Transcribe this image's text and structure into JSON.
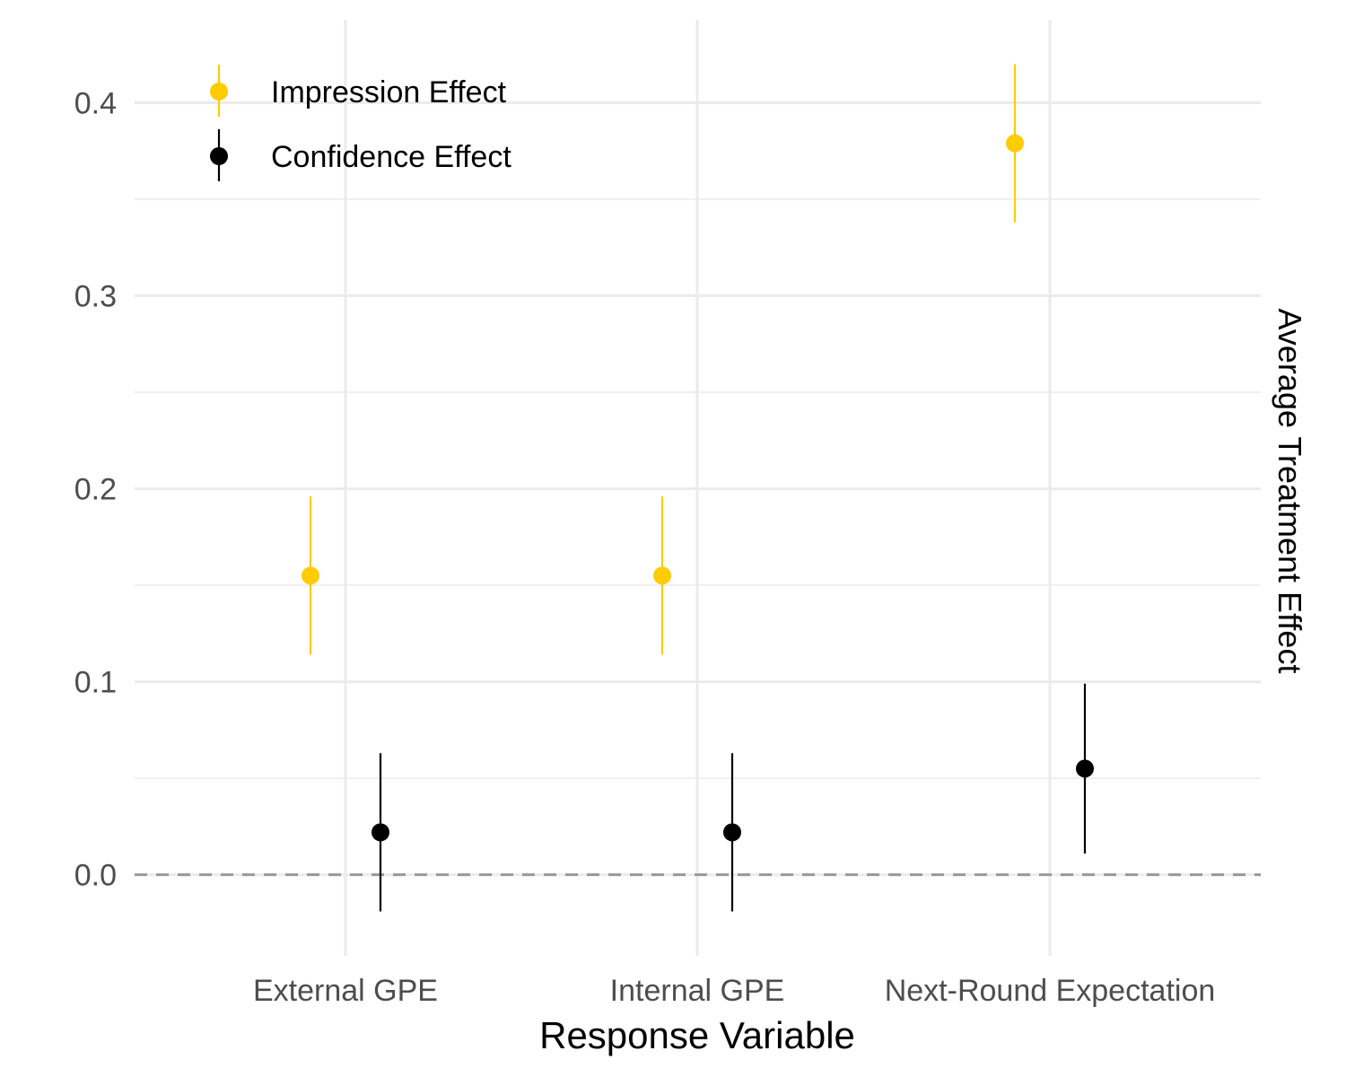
{
  "chart_data": {
    "type": "scatter",
    "subtype": "point-range",
    "title": "",
    "xlabel": "Response Variable",
    "ylabel": "Average Treatment Effect",
    "ylabel_position": "right",
    "categories": [
      "External GPE",
      "Internal GPE",
      "Next-Round Expectation"
    ],
    "ylim": [
      -0.042,
      0.443
    ],
    "yticks": [
      0.0,
      0.1,
      0.2,
      0.3,
      0.4
    ],
    "ytick_labels": [
      "0.0",
      "0.1",
      "0.2",
      "0.3",
      "0.4"
    ],
    "grid": true,
    "reference_line": {
      "y": 0,
      "style": "dashed",
      "color": "#999999"
    },
    "legend": {
      "position": "top-left"
    },
    "series": [
      {
        "name": "Impression Effect",
        "color": "#FFCC00",
        "values": [
          0.155,
          0.155,
          0.379
        ],
        "lower": [
          0.114,
          0.114,
          0.338
        ],
        "upper": [
          0.196,
          0.196,
          0.42
        ]
      },
      {
        "name": "Confidence Effect",
        "color": "#000000",
        "values": [
          0.022,
          0.022,
          0.055
        ],
        "lower": [
          -0.019,
          -0.019,
          0.011
        ],
        "upper": [
          0.063,
          0.063,
          0.099
        ]
      }
    ]
  }
}
